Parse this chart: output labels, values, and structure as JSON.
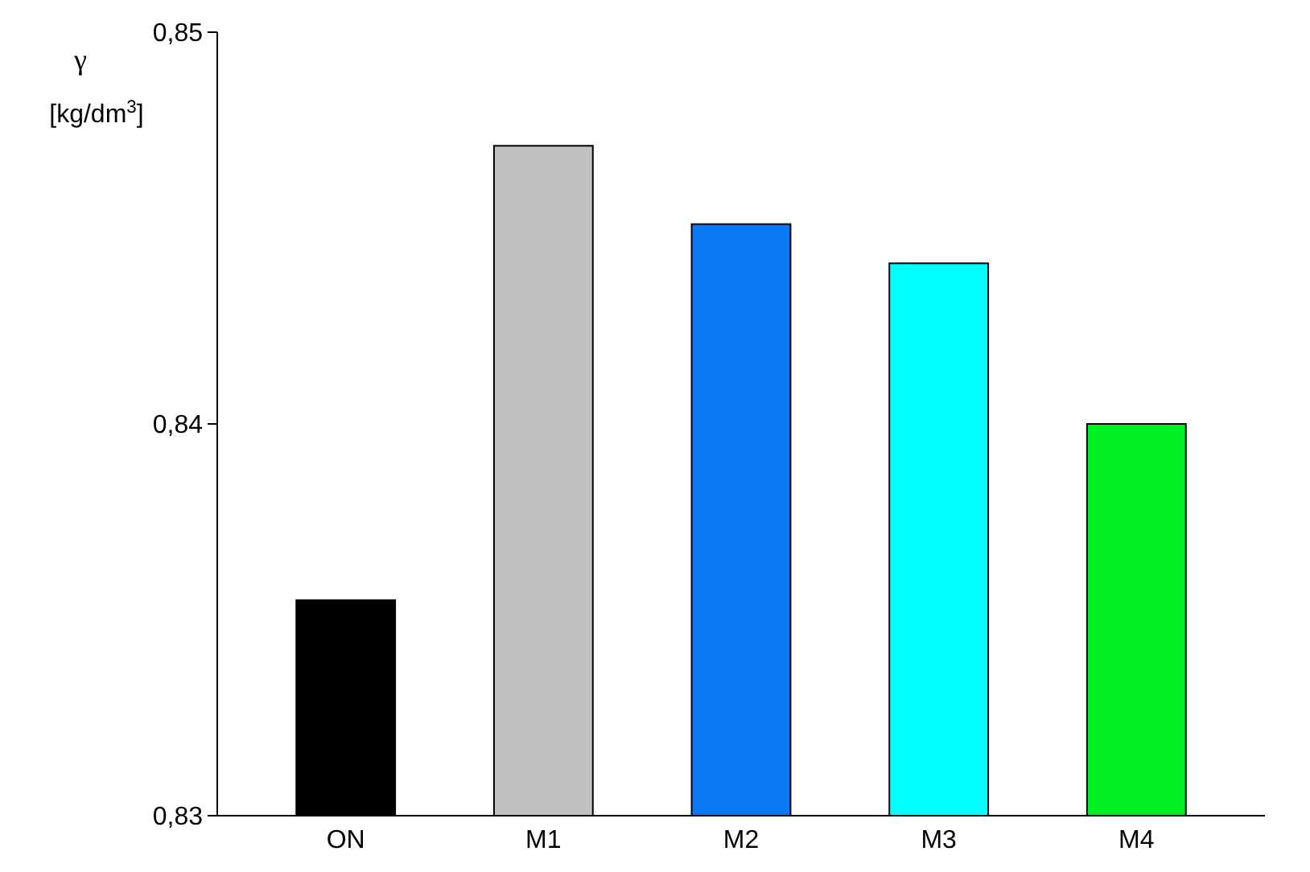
{
  "chart_data": {
    "type": "bar",
    "ylabel": "γ [kg/dm$^{3}$]",
    "categories": [
      "ON",
      "M1",
      "M2",
      "M3",
      "M4"
    ],
    "values": [
      0.8355,
      0.8471,
      0.8451,
      0.8441,
      0.84
    ],
    "colors": [
      "#000000",
      "#c0c0c0",
      "#0a78f5",
      "#00ffff",
      "#00ee22"
    ],
    "ylim": [
      0.83,
      0.85
    ],
    "yticks": [
      {
        "value": 0.83,
        "label": "0,83"
      },
      {
        "value": 0.84,
        "label": "0,84"
      },
      {
        "value": 0.85,
        "label": "0,85"
      }
    ]
  }
}
